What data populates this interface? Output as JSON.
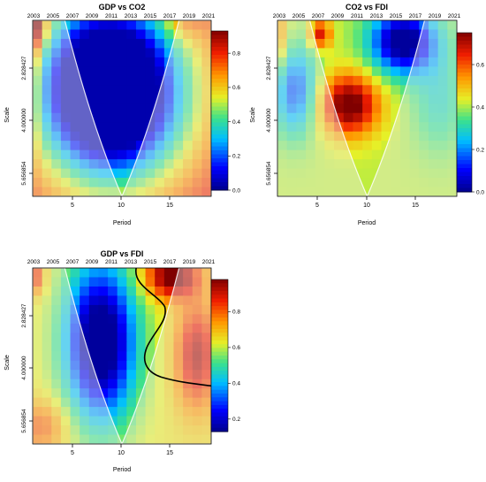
{
  "chart_data": [
    {
      "type": "heatmap",
      "title": "GDP vs CO2",
      "xlabel": "Period",
      "ylabel": "Scale",
      "x_ticks": [
        "5",
        "10",
        "15"
      ],
      "x_top_ticks": [
        "2003",
        "2005",
        "2007",
        "2009",
        "2011",
        "2013",
        "2015",
        "2017",
        "2019",
        "2021"
      ],
      "y_ticks": [
        "2.828427",
        "4.000000",
        "5.656854"
      ],
      "legend_ticks": [
        "0.0",
        "0.2",
        "0.4",
        "0.6",
        "0.8"
      ],
      "legend_range": [
        0,
        0.93
      ],
      "pattern": "gdp_co2",
      "contour": false
    },
    {
      "type": "heatmap",
      "title": "CO2 vs FDI",
      "xlabel": "Period",
      "ylabel": "Scale",
      "x_ticks": [
        "5",
        "10",
        "15"
      ],
      "x_top_ticks": [
        "2003",
        "2005",
        "2007",
        "2009",
        "2011",
        "2013",
        "2015",
        "2017",
        "2019",
        "2021"
      ],
      "y_ticks": [
        "2.828427",
        "4.000000",
        "5.656854"
      ],
      "legend_ticks": [
        "0.0",
        "0.2",
        "0.4",
        "0.6"
      ],
      "legend_range": [
        0,
        0.75
      ],
      "pattern": "co2_fdi",
      "contour": false
    },
    {
      "type": "heatmap",
      "title": "GDP vs FDI",
      "xlabel": "Period",
      "ylabel": "Scale",
      "x_ticks": [
        "5",
        "10",
        "15"
      ],
      "x_top_ticks": [
        "2003",
        "2005",
        "2007",
        "2009",
        "2011",
        "2013",
        "2015",
        "2017",
        "2019",
        "2021"
      ],
      "y_ticks": [
        "2.828427",
        "4.000000",
        "5.656854"
      ],
      "legend_ticks": [
        "0.2",
        "0.4",
        "0.6",
        "0.8"
      ],
      "legend_range": [
        0.13,
        0.98
      ],
      "pattern": "gdp_fdi",
      "contour": true
    }
  ]
}
